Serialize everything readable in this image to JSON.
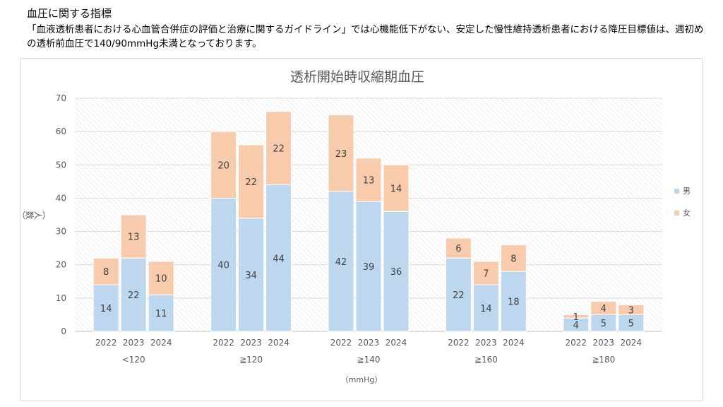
{
  "page": {
    "heading": "血圧に関する指標",
    "description": "「血液透析患者における心血管合併症の評価と治療に関するガイドライン」では心機能低下がない、安定した慢性維持透析患者における降圧目標値は、週初めの透析前血圧で140/90mmHg未満となっております。"
  },
  "colors": {
    "male": "#bdd7ee",
    "female": "#f8cbad",
    "grid": "#d9d9d9",
    "text": "#595959"
  },
  "chart_data": {
    "type": "bar",
    "stacked": true,
    "title": "透析開始時収縮期血圧",
    "ylabel": "（人数）",
    "xlabel": "（mmHg）",
    "ylim": [
      0,
      70
    ],
    "yticks": [
      0,
      10,
      20,
      30,
      40,
      50,
      60,
      70
    ],
    "grid": true,
    "legend_position": "right",
    "groups": [
      "<120",
      "≧120",
      "≧140",
      "≧160",
      "≧180"
    ],
    "years": [
      "2022",
      "2023",
      "2024"
    ],
    "series": [
      {
        "name": "男",
        "values": [
          [
            14,
            22,
            11
          ],
          [
            40,
            34,
            44
          ],
          [
            42,
            39,
            36
          ],
          [
            22,
            14,
            18
          ],
          [
            4,
            5,
            5
          ]
        ]
      },
      {
        "name": "女",
        "values": [
          [
            8,
            13,
            10
          ],
          [
            20,
            22,
            22
          ],
          [
            23,
            13,
            14
          ],
          [
            6,
            7,
            8
          ],
          [
            1,
            4,
            3
          ]
        ]
      }
    ]
  }
}
